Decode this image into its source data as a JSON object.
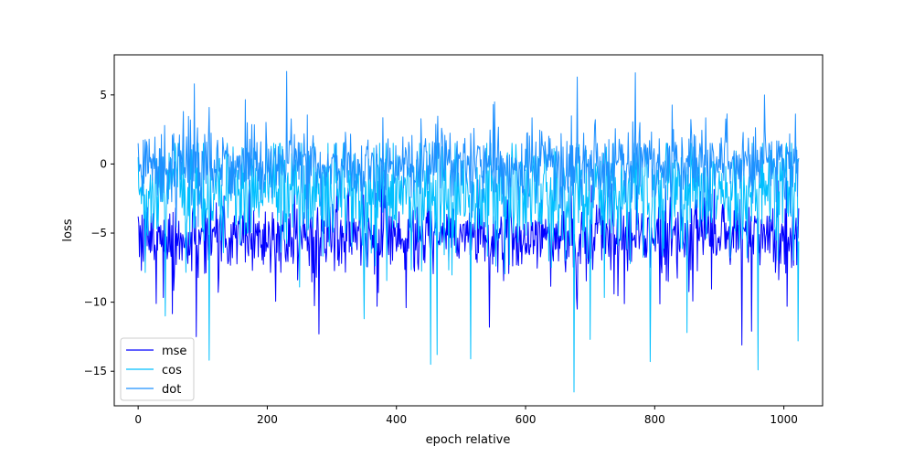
{
  "chart_data": {
    "type": "line",
    "title": "",
    "xlabel": "epoch relative",
    "ylabel": "loss",
    "xlim": [
      -37,
      1060
    ],
    "ylim": [
      -17.5,
      7.9
    ],
    "xticks": [
      0,
      200,
      400,
      600,
      800,
      1000
    ],
    "yticks": [
      -15,
      -10,
      -5,
      0,
      5
    ],
    "n_points": 1024,
    "grid": false,
    "legend_position": "lower-left",
    "series": [
      {
        "name": "mse",
        "color": "#0000ff",
        "summary": {
          "mean": -5.3,
          "typical_range": [
            -7.5,
            -3.5
          ],
          "min": -13.1,
          "max": -1.0
        },
        "notable_points": [
          [
            0,
            -3.8
          ],
          [
            5,
            -7.7
          ],
          [
            28,
            -10.1
          ],
          [
            90,
            -12.5
          ],
          [
            280,
            -12.3
          ],
          [
            370,
            -10.3
          ],
          [
            415,
            -10.4
          ],
          [
            680,
            -10.5
          ],
          [
            935,
            -13.1
          ],
          [
            950,
            -12.1
          ],
          [
            1005,
            -10.3
          ],
          [
            1020,
            -7.3
          ]
        ]
      },
      {
        "name": "cos",
        "color": "#00bfff",
        "summary": {
          "mean": -2.0,
          "typical_range": [
            -5.0,
            1.0
          ],
          "min": -16.5,
          "max": 1.5
        },
        "notable_points": [
          [
            0,
            0.5
          ],
          [
            42,
            -11.0
          ],
          [
            110,
            -14.2
          ],
          [
            350,
            -11.2
          ],
          [
            453,
            -14.5
          ],
          [
            463,
            -13.8
          ],
          [
            515,
            -14.1
          ],
          [
            675,
            -16.5
          ],
          [
            700,
            -12.7
          ],
          [
            793,
            -14.3
          ],
          [
            850,
            -12.2
          ],
          [
            960,
            -14.9
          ],
          [
            1022,
            -12.8
          ]
        ]
      },
      {
        "name": "dot",
        "color": "#1e90ff",
        "summary": {
          "mean": 0.0,
          "typical_range": [
            -2.0,
            2.0
          ],
          "min": -9.5,
          "max": 6.7
        },
        "notable_points": [
          [
            0,
            1.5
          ],
          [
            87,
            5.8
          ],
          [
            230,
            6.7
          ],
          [
            680,
            6.3
          ],
          [
            770,
            6.6
          ],
          [
            970,
            5.0
          ],
          [
            1020,
            1.0
          ]
        ]
      }
    ]
  }
}
